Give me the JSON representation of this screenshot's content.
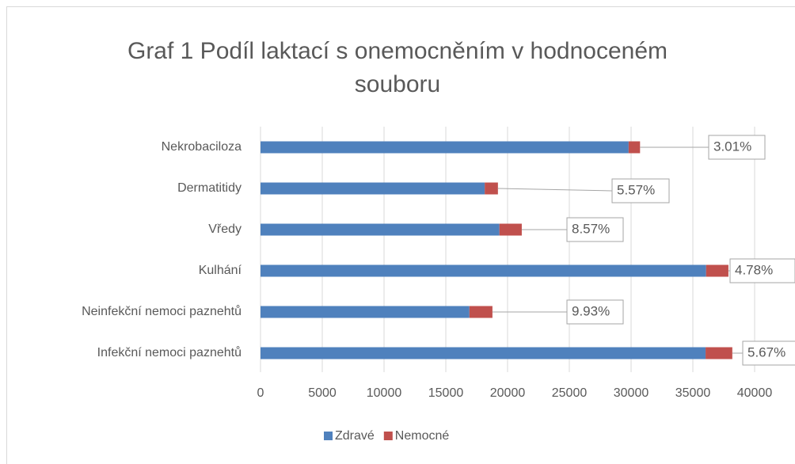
{
  "chart_data": {
    "type": "stacked_hbar",
    "title": [
      "Graf 1 Podíl laktací s onemocněním v hodnoceném",
      "souboru"
    ],
    "categories": [
      "Nekrobaciloza",
      "Dermatitidy",
      "Vředy",
      "Kulhání",
      "Neinfekční nemoci paznehtů",
      "Infekční nemoci paznehtů"
    ],
    "series": [
      {
        "name": "Zdravé",
        "color": "#4f81bd",
        "values": [
          29800,
          18150,
          19340,
          36070,
          16910,
          36030
        ]
      },
      {
        "name": "Nemocné",
        "color": "#c0504d",
        "values": [
          925,
          1070,
          1810,
          1810,
          1865,
          2165
        ]
      }
    ],
    "annotations": [
      "3.01%",
      "5.57%",
      "8.57%",
      "4.78%",
      "9.93%",
      "5.67%"
    ],
    "xlim": [
      0,
      40000
    ],
    "xticks": [
      0,
      5000,
      10000,
      15000,
      20000,
      25000,
      30000,
      35000,
      40000
    ],
    "grid": true,
    "legend": "bottom"
  }
}
